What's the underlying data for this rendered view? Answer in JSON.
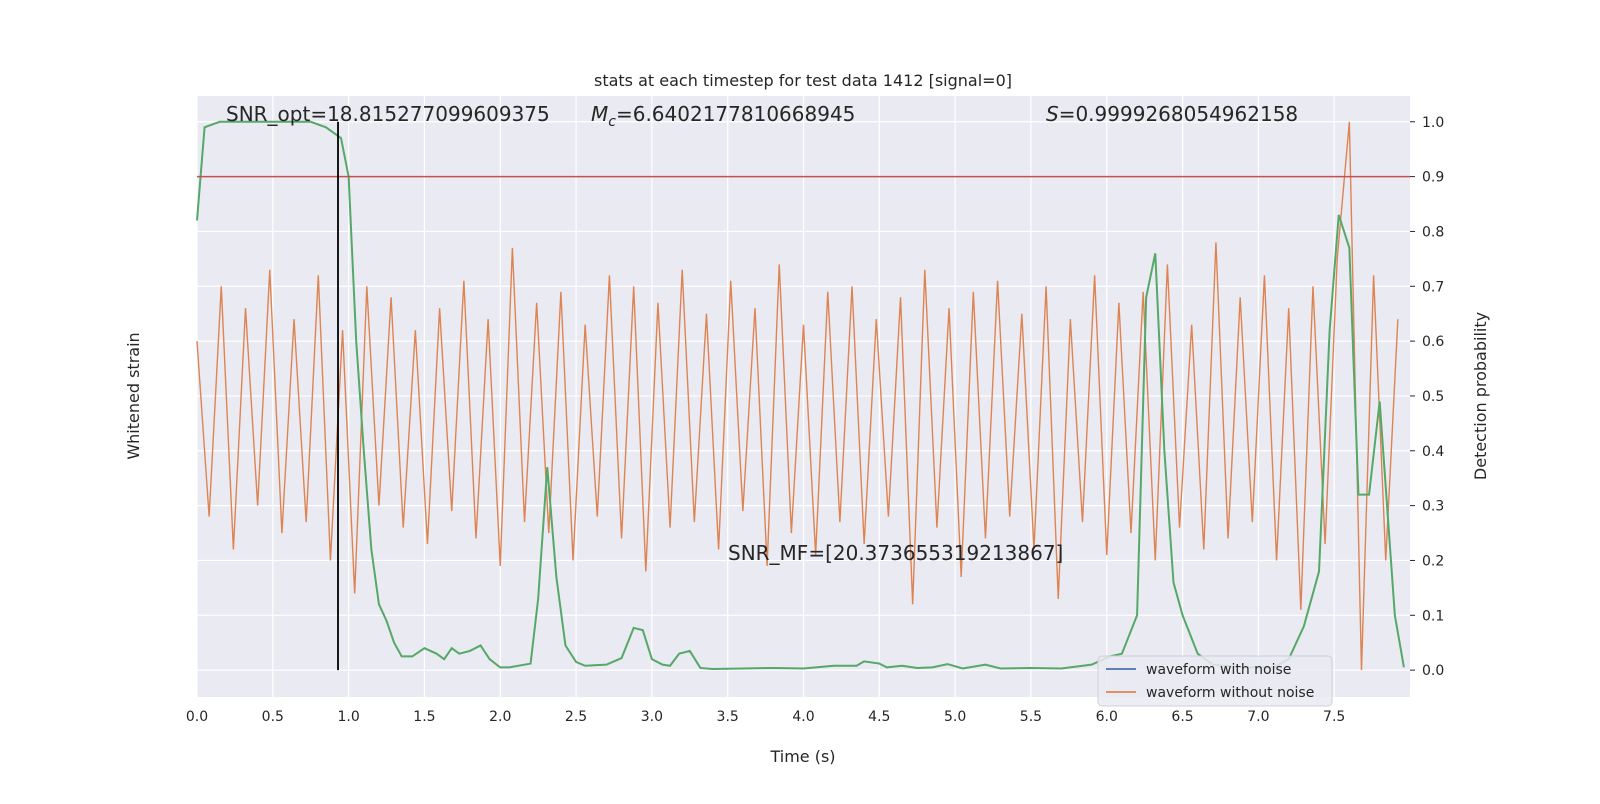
{
  "chart_data": {
    "type": "line",
    "title": "stats at each timestep for test data 1412 [signal=0]",
    "xlabel": "Time (s)",
    "ylabel": "Whitened strain",
    "y2label": "Detection probability",
    "xlim": [
      0,
      8
    ],
    "ylim": [
      -0.049,
      1.047
    ],
    "y2lim": [
      -0.049,
      1.047
    ],
    "xticks": [
      {
        "value": 0,
        "label": "0.0"
      },
      0.5,
      {
        "value": 1,
        "label": "1.0"
      },
      1.5,
      {
        "value": 2,
        "label": "2.0"
      },
      2.5,
      {
        "value": 3,
        "label": "3.0"
      },
      3.5,
      {
        "value": 4,
        "label": "4.0"
      },
      4.5,
      {
        "value": 5,
        "label": "5.0"
      },
      5.5,
      {
        "value": 6,
        "label": "6.0"
      },
      6.5,
      {
        "value": 7,
        "label": "7.0"
      },
      7.5
    ],
    "y2ticks": [
      {
        "value": 0,
        "label": "0.0"
      },
      0.1,
      0.2,
      0.3,
      0.4,
      0.5,
      0.6,
      0.7,
      0.8,
      0.9,
      {
        "value": 1,
        "label": "1.0"
      }
    ],
    "grid": true,
    "background": "#eaeaf2",
    "annotations": [
      {
        "text": "SNR_opt=18.815277099609375"
      },
      {
        "var": "M",
        "sub": "c",
        "text": "=6.6402177810668945"
      },
      {
        "var": "S",
        "text": "=0.9999268054962158"
      },
      {
        "text": "SNR_MF=[20.373655319213867]"
      }
    ],
    "hline": {
      "value": 0.9,
      "color": "#c44e52",
      "axis": "y2"
    },
    "vline": {
      "value": 0.93,
      "color": "#000000"
    },
    "legend": {
      "loc": "lower right",
      "entries": [
        {
          "label": "waveform with noise",
          "color": "#4c72b0"
        },
        {
          "label": "waveform without noise",
          "color": "#dd8452"
        }
      ]
    },
    "series": [
      {
        "color": "#dd8452",
        "x": [
          0,
          0.08,
          0.16,
          0.24,
          0.32,
          0.4,
          0.48,
          0.56,
          0.64,
          0.72,
          0.8,
          0.88,
          0.96,
          1.04,
          1.12,
          1.2,
          1.28,
          1.36,
          1.44,
          1.52,
          1.6,
          1.68,
          1.76,
          1.84,
          1.92,
          2,
          2.08,
          2.16,
          2.24,
          2.32,
          2.4,
          2.48,
          2.56,
          2.64,
          2.72,
          2.8,
          2.88,
          2.96,
          3.04,
          3.12,
          3.2,
          3.28,
          3.36,
          3.44,
          3.52,
          3.6,
          3.68,
          3.76,
          3.84,
          3.92,
          4,
          4.08,
          4.16,
          4.24,
          4.32,
          4.4,
          4.48,
          4.56,
          4.64,
          4.72,
          4.8,
          4.88,
          4.96,
          5.04,
          5.12,
          5.2,
          5.28,
          5.36,
          5.44,
          5.52,
          5.6,
          5.68,
          5.76,
          5.84,
          5.92,
          6,
          6.08,
          6.16,
          6.24,
          6.32,
          6.4,
          6.48,
          6.56,
          6.64,
          6.72,
          6.8,
          6.88,
          6.96,
          7.04,
          7.12,
          7.2,
          7.28,
          7.36,
          7.44,
          7.52,
          7.6,
          7.68,
          7.76,
          7.84,
          7.92
        ],
        "values": [
          0.6,
          0.28,
          0.7,
          0.22,
          0.66,
          0.3,
          0.73,
          0.25,
          0.64,
          0.27,
          0.72,
          0.2,
          0.62,
          0.14,
          0.7,
          0.3,
          0.68,
          0.26,
          0.62,
          0.23,
          0.66,
          0.29,
          0.71,
          0.24,
          0.64,
          0.19,
          0.77,
          0.27,
          0.67,
          0.25,
          0.69,
          0.2,
          0.63,
          0.28,
          0.72,
          0.24,
          0.7,
          0.18,
          0.67,
          0.26,
          0.73,
          0.27,
          0.65,
          0.22,
          0.71,
          0.29,
          0.66,
          0.19,
          0.74,
          0.25,
          0.63,
          0.21,
          0.69,
          0.27,
          0.7,
          0.23,
          0.64,
          0.28,
          0.68,
          0.12,
          0.73,
          0.26,
          0.66,
          0.17,
          0.69,
          0.24,
          0.71,
          0.28,
          0.65,
          0.22,
          0.7,
          0.13,
          0.64,
          0.27,
          0.72,
          0.21,
          0.67,
          0.25,
          0.69,
          0.2,
          0.74,
          0.26,
          0.63,
          0.22,
          0.78,
          0.24,
          0.68,
          0.27,
          0.72,
          0.2,
          0.66,
          0.11,
          0.7,
          0.23,
          0.75,
          1.0,
          0.0,
          0.72,
          0.2,
          0.64
        ]
      },
      {
        "color": "#55a868",
        "axis": "y2",
        "x": [
          0,
          0.05,
          0.15,
          0.5,
          0.75,
          0.85,
          0.9,
          0.95,
          1.0,
          1.05,
          1.1,
          1.15,
          1.2,
          1.25,
          1.3,
          1.35,
          1.42,
          1.5,
          1.58,
          1.63,
          1.68,
          1.73,
          1.8,
          1.87,
          1.93,
          2.0,
          2.06,
          2.2,
          2.25,
          2.31,
          2.37,
          2.43,
          2.5,
          2.56,
          2.7,
          2.8,
          2.88,
          2.94,
          3.0,
          3.07,
          3.12,
          3.18,
          3.25,
          3.32,
          3.4,
          3.6,
          3.8,
          4.0,
          4.2,
          4.35,
          4.4,
          4.5,
          4.55,
          4.65,
          4.75,
          4.85,
          4.95,
          5.05,
          5.2,
          5.3,
          5.5,
          5.7,
          5.9,
          6.02,
          6.1,
          6.2,
          6.26,
          6.32,
          6.38,
          6.44,
          6.5,
          6.6,
          6.7,
          6.9,
          7.1,
          7.2,
          7.3,
          7.4,
          7.47,
          7.53,
          7.6,
          7.66,
          7.73,
          7.8,
          7.9,
          7.96
        ],
        "values": [
          0.82,
          0.99,
          1.0,
          1.0,
          1.0,
          0.99,
          0.98,
          0.97,
          0.9,
          0.6,
          0.4,
          0.22,
          0.12,
          0.09,
          0.05,
          0.025,
          0.025,
          0.04,
          0.03,
          0.02,
          0.04,
          0.03,
          0.035,
          0.045,
          0.02,
          0.005,
          0.005,
          0.012,
          0.13,
          0.37,
          0.17,
          0.045,
          0.015,
          0.008,
          0.01,
          0.022,
          0.077,
          0.073,
          0.02,
          0.01,
          0.008,
          0.03,
          0.035,
          0.004,
          0.002,
          0.003,
          0.004,
          0.003,
          0.008,
          0.008,
          0.016,
          0.012,
          0.005,
          0.008,
          0.004,
          0.005,
          0.011,
          0.003,
          0.01,
          0.003,
          0.004,
          0.003,
          0.01,
          0.025,
          0.03,
          0.1,
          0.68,
          0.76,
          0.4,
          0.16,
          0.1,
          0.03,
          0.01,
          0.005,
          0.005,
          0.02,
          0.08,
          0.18,
          0.62,
          0.83,
          0.77,
          0.32,
          0.32,
          0.49,
          0.1,
          0.005
        ]
      }
    ]
  }
}
